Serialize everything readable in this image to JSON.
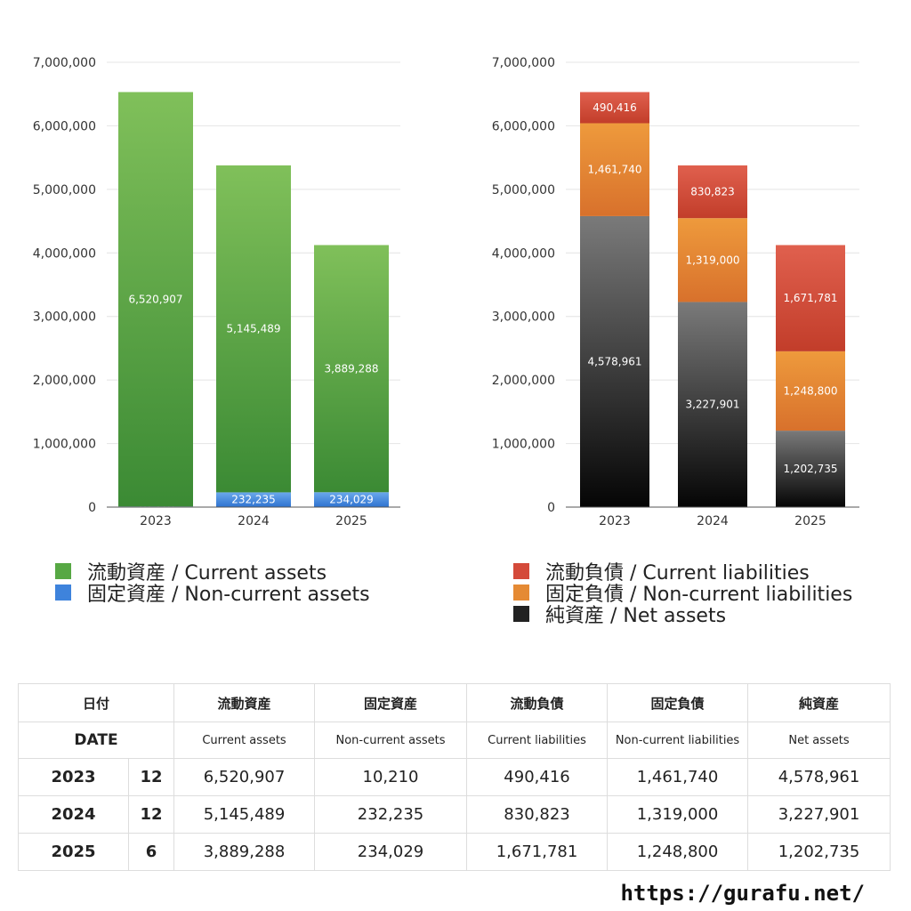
{
  "chart_data": [
    {
      "type": "bar",
      "stacked": true,
      "categories": [
        "2023",
        "2024",
        "2025"
      ],
      "ylim": [
        0,
        7000000
      ],
      "yticks": [
        "0",
        "1,000,000",
        "2,000,000",
        "3,000,000",
        "4,000,000",
        "5,000,000",
        "6,000,000",
        "7,000,000"
      ],
      "grid": true,
      "legend_position": "bottom",
      "series": [
        {
          "name": "固定資産 / Non-current assets",
          "values": [
            10210,
            232235,
            234029
          ],
          "labels": [
            "10,210",
            "232,235",
            "234,029"
          ],
          "color_top": "#6aa8ec",
          "color_bottom": "#2f73d0"
        },
        {
          "name": "流動資産 / Current assets",
          "values": [
            6520907,
            5145489,
            3889288
          ],
          "labels": [
            "6,520,907",
            "5,145,489",
            "3,889,288"
          ],
          "color_top": "#80c05a",
          "color_bottom": "#3b8a34"
        }
      ]
    },
    {
      "type": "bar",
      "stacked": true,
      "categories": [
        "2023",
        "2024",
        "2025"
      ],
      "ylim": [
        0,
        7000000
      ],
      "yticks": [
        "0",
        "1,000,000",
        "2,000,000",
        "3,000,000",
        "4,000,000",
        "5,000,000",
        "6,000,000",
        "7,000,000"
      ],
      "grid": true,
      "legend_position": "bottom",
      "series": [
        {
          "name": "純資産 / Net assets",
          "values": [
            4578961,
            3227901,
            1202735
          ],
          "labels": [
            "4,578,961",
            "3,227,901",
            "1,202,735"
          ],
          "color_top": "#7a7a7a",
          "color_bottom": "#050505"
        },
        {
          "name": "固定負債 / Non-current liabilities",
          "values": [
            1461740,
            1319000,
            1248800
          ],
          "labels": [
            "1,461,740",
            "1,319,000",
            "1,248,800"
          ],
          "color_top": "#ee9a3c",
          "color_bottom": "#d8712c"
        },
        {
          "name": "流動負債 / Current liabilities",
          "values": [
            490416,
            830823,
            1671781
          ],
          "labels": [
            "490,416",
            "830,823",
            "1,671,781"
          ],
          "color_top": "#e0604e",
          "color_bottom": "#c23d2a"
        }
      ]
    }
  ],
  "legend_left": [
    {
      "label": "流動資産 / Current assets",
      "color": "#57a844"
    },
    {
      "label": "固定資産 / Non-current assets",
      "color": "#3e83dc"
    }
  ],
  "legend_right": [
    {
      "label": "流動負債 / Current liabilities",
      "color": "#d44a3a"
    },
    {
      "label": "固定負債 / Non-current liabilities",
      "color": "#e58a34"
    },
    {
      "label": "純資産 / Net assets",
      "color": "#222222"
    }
  ],
  "table": {
    "header_jp": {
      "date": "日付",
      "ca": "流動資産",
      "nca": "固定資産",
      "cl": "流動負債",
      "ncl": "固定負債",
      "na": "純資産"
    },
    "header_en": {
      "date": "DATE",
      "ca": "Current assets",
      "nca": "Non-current assets",
      "cl": "Current liabilities",
      "ncl": "Non-current liabilities",
      "na": "Net assets"
    },
    "rows": [
      {
        "year": "2023",
        "month": "12",
        "ca": "6,520,907",
        "nca": "10,210",
        "cl": "490,416",
        "ncl": "1,461,740",
        "na": "4,578,961"
      },
      {
        "year": "2024",
        "month": "12",
        "ca": "5,145,489",
        "nca": "232,235",
        "cl": "830,823",
        "ncl": "1,319,000",
        "na": "3,227,901"
      },
      {
        "year": "2025",
        "month": "6",
        "ca": "3,889,288",
        "nca": "234,029",
        "cl": "1,671,781",
        "ncl": "1,248,800",
        "na": "1,202,735"
      }
    ]
  },
  "footer": {
    "url": "https://gurafu.net/"
  }
}
